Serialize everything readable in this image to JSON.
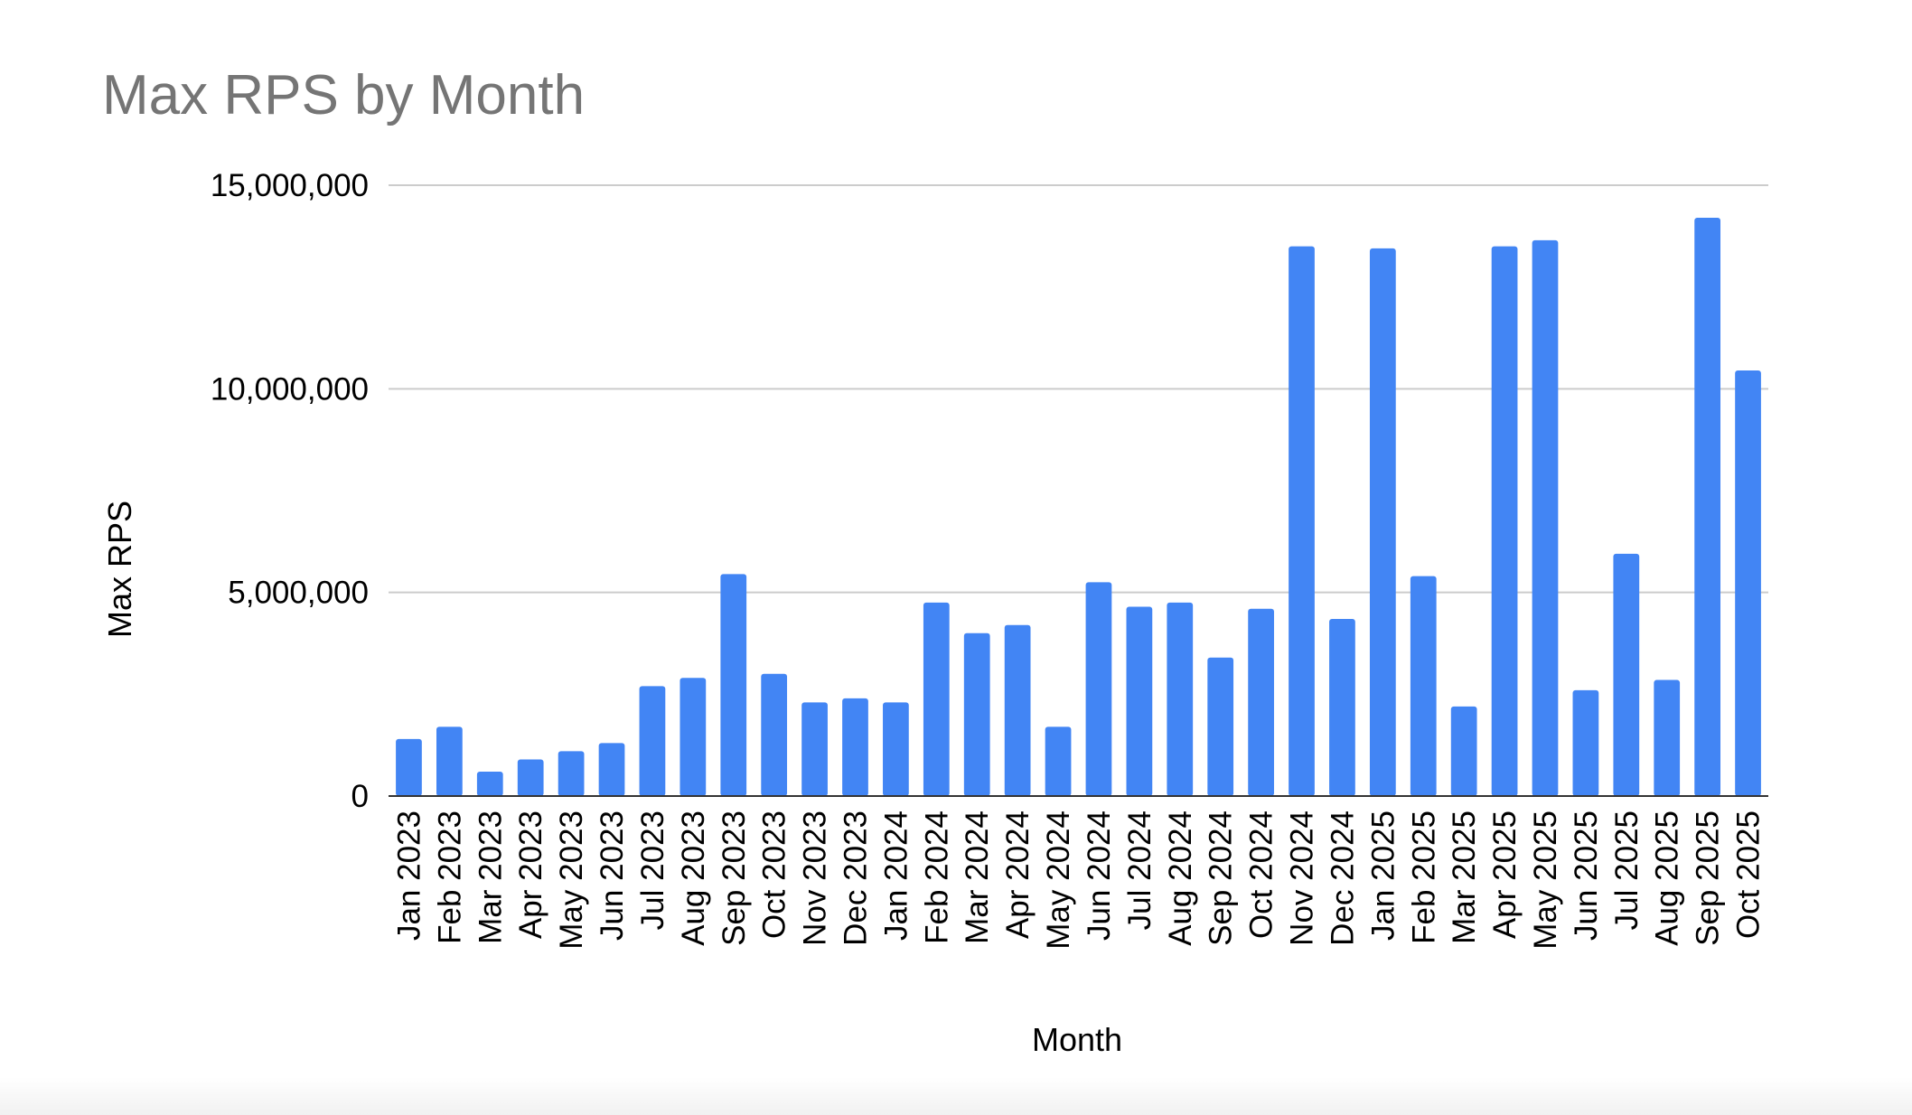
{
  "chart_data": {
    "type": "bar",
    "title": "Max RPS by Month",
    "xlabel": "Month",
    "ylabel": "Max RPS",
    "ylim": [
      0,
      15000000
    ],
    "yticks": [
      0,
      5000000,
      10000000,
      15000000
    ],
    "ytick_labels": [
      "0",
      "5,000,000",
      "10,000,000",
      "15,000,000"
    ],
    "grid": true,
    "legend": "none",
    "bar_color": "#4285f4",
    "categories": [
      "Jan 2023",
      "Feb 2023",
      "Mar 2023",
      "Apr 2023",
      "May 2023",
      "Jun 2023",
      "Jul 2023",
      "Aug 2023",
      "Sep 2023",
      "Oct 2023",
      "Nov 2023",
      "Dec 2023",
      "Jan 2024",
      "Feb 2024",
      "Mar 2024",
      "Apr 2024",
      "May 2024",
      "Jun 2024",
      "Jul 2024",
      "Aug 2024",
      "Sep 2024",
      "Oct 2024",
      "Nov 2024",
      "Dec 2024",
      "Jan 2025",
      "Feb 2025",
      "Mar 2025",
      "Apr 2025",
      "May 2025",
      "Jun 2025",
      "Jul 2025",
      "Aug 2025",
      "Sep 2025",
      "Oct 2025"
    ],
    "values": [
      1400000,
      1700000,
      600000,
      900000,
      1100000,
      1300000,
      2700000,
      2900000,
      5450000,
      3000000,
      2300000,
      2400000,
      2300000,
      4750000,
      4000000,
      4200000,
      1700000,
      5250000,
      4650000,
      4750000,
      3400000,
      4600000,
      13500000,
      4350000,
      13450000,
      5400000,
      2200000,
      13500000,
      13650000,
      2600000,
      5950000,
      2850000,
      14200000,
      10450000
    ]
  }
}
